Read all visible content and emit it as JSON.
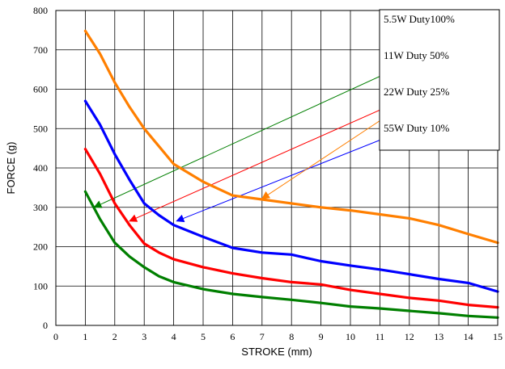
{
  "chart_data": {
    "type": "line",
    "title": "",
    "xlabel": "STROKE (mm)",
    "ylabel": "FORCE (g)",
    "xlim": [
      0,
      15
    ],
    "ylim": [
      0,
      800
    ],
    "x_ticks": [
      0,
      1,
      2,
      3,
      4,
      5,
      6,
      7,
      8,
      9,
      10,
      11,
      12,
      13,
      14,
      15
    ],
    "y_ticks": [
      0,
      100,
      200,
      300,
      400,
      500,
      600,
      700,
      800
    ],
    "grid": true,
    "legend_position": "top-right",
    "series": [
      {
        "name": "5.5W Duty100%",
        "color": "#007F00",
        "x": [
          1,
          1.5,
          2,
          2.5,
          3,
          3.5,
          4,
          5,
          6,
          7,
          8,
          9,
          10,
          11,
          12,
          13,
          14,
          15
        ],
        "values": [
          340,
          270,
          210,
          175,
          148,
          125,
          110,
          92,
          80,
          72,
          65,
          57,
          48,
          43,
          37,
          31,
          24,
          20
        ]
      },
      {
        "name": "11W Duty 50%",
        "color": "#FF0000",
        "x": [
          1,
          1.5,
          2,
          2.5,
          3,
          3.5,
          4,
          5,
          6,
          7,
          8,
          9,
          10,
          11,
          12,
          13,
          14,
          15
        ],
        "values": [
          448,
          385,
          310,
          255,
          208,
          185,
          168,
          148,
          132,
          120,
          110,
          104,
          90,
          80,
          70,
          63,
          52,
          46
        ]
      },
      {
        "name": "22W Duty 25%",
        "color": "#0000FF",
        "x": [
          1,
          1.5,
          2,
          2.5,
          3,
          3.5,
          4,
          4.5,
          5,
          6,
          7,
          8,
          9,
          10,
          11,
          12,
          13,
          14,
          15
        ],
        "values": [
          570,
          510,
          435,
          370,
          310,
          280,
          255,
          240,
          225,
          197,
          185,
          180,
          163,
          152,
          142,
          130,
          118,
          108,
          86
        ]
      },
      {
        "name": "55W Duty 10%",
        "color": "#FF7F00",
        "x": [
          1,
          1.5,
          2,
          2.5,
          3,
          3.5,
          4,
          5,
          6,
          7,
          8,
          9,
          10,
          11,
          12,
          13,
          14,
          15
        ],
        "values": [
          748,
          690,
          617,
          555,
          500,
          455,
          410,
          365,
          330,
          320,
          310,
          300,
          292,
          282,
          272,
          255,
          232,
          210
        ]
      }
    ],
    "annotations": [
      {
        "series": "5.5W Duty100%",
        "from": [
          15,
          770
        ],
        "to": [
          1.3,
          300
        ]
      },
      {
        "series": "11W Duty 50%",
        "from": [
          15,
          680
        ],
        "to": [
          2.5,
          265
        ]
      },
      {
        "series": "22W Duty 25%",
        "from": [
          15,
          590
        ],
        "to": [
          4.1,
          265
        ]
      },
      {
        "series": "55W Duty 10%",
        "from": [
          11,
          520
        ],
        "to": [
          7.0,
          322
        ]
      }
    ]
  }
}
